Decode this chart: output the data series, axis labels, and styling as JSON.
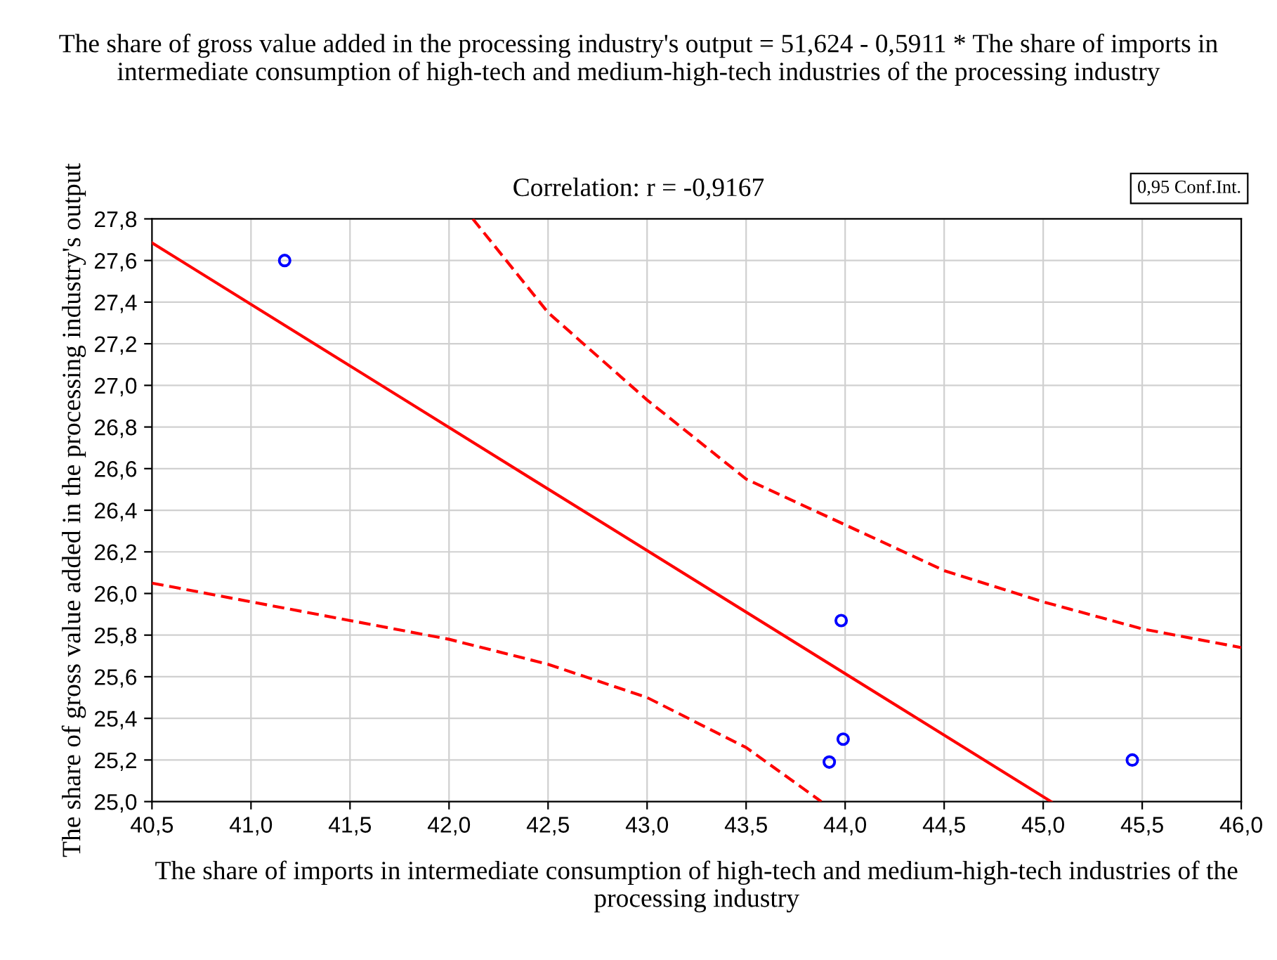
{
  "chart_data": {
    "type": "scatter",
    "title": "The share of gross value added in the processing industry's output = 51,624 - 0,5911 * The share of imports in intermediate consumption of high-tech and medium-high-tech industries of the processing industry",
    "subtitle": "Correlation: r = -0,9167",
    "xlabel": "The share of imports in intermediate consumption of high-tech and medium-high-tech industries of the processing industry",
    "ylabel": "The share of gross value added in the processing industry's output",
    "annotations": [
      "0,95 Conf.Int."
    ],
    "series": [
      {
        "color": "#0000ff",
        "marker": "circle",
        "x": [
          41.17,
          43.98,
          43.99,
          43.92,
          45.45
        ],
        "values": [
          27.6,
          25.87,
          25.3,
          25.19,
          25.2
        ]
      },
      {
        "type": "line",
        "color": "#ff0000",
        "line_style": "solid",
        "x": [
          40.5,
          45.04
        ],
        "values": [
          27.685,
          25.0
        ]
      },
      {
        "type": "line",
        "color": "#ff0000",
        "line_style": "dashed",
        "x": [
          42.12,
          42.5,
          43.0,
          43.5,
          44.0,
          44.5,
          45.0,
          45.5,
          46.0
        ],
        "values": [
          27.8,
          27.35,
          26.93,
          26.55,
          26.33,
          26.11,
          25.96,
          25.83,
          25.74
        ]
      },
      {
        "type": "line",
        "color": "#ff0000",
        "line_style": "dashed",
        "x": [
          40.5,
          41.0,
          41.5,
          42.0,
          42.5,
          43.0,
          43.5,
          43.88
        ],
        "values": [
          26.05,
          25.96,
          25.87,
          25.78,
          25.66,
          25.5,
          25.26,
          25.0
        ]
      }
    ],
    "xlim": [
      40.5,
      46.0
    ],
    "xticks": [
      {
        "value": 40.5,
        "label": "40,5"
      },
      {
        "value": 41.0,
        "label": "41,0"
      },
      {
        "value": 41.5,
        "label": "41,5"
      },
      {
        "value": 42.0,
        "label": "42,0"
      },
      {
        "value": 42.5,
        "label": "42,5"
      },
      {
        "value": 43.0,
        "label": "43,0"
      },
      {
        "value": 43.5,
        "label": "43,5"
      },
      {
        "value": 44.0,
        "label": "44,0"
      },
      {
        "value": 44.5,
        "label": "44,5"
      },
      {
        "value": 45.0,
        "label": "45,0"
      },
      {
        "value": 45.5,
        "label": "45,5"
      },
      {
        "value": 46.0,
        "label": "46,0"
      }
    ],
    "ylim": [
      25.0,
      27.8
    ],
    "yticks": [
      {
        "value": 25.0,
        "label": "25,0"
      },
      {
        "value": 25.2,
        "label": "25,2"
      },
      {
        "value": 25.4,
        "label": "25,4"
      },
      {
        "value": 25.6,
        "label": "25,6"
      },
      {
        "value": 25.8,
        "label": "25,8"
      },
      {
        "value": 26.0,
        "label": "26,0"
      },
      {
        "value": 26.2,
        "label": "26,2"
      },
      {
        "value": 26.4,
        "label": "26,4"
      },
      {
        "value": 26.6,
        "label": "26,6"
      },
      {
        "value": 26.8,
        "label": "26,8"
      },
      {
        "value": 27.0,
        "label": "27,0"
      },
      {
        "value": 27.2,
        "label": "27,2"
      },
      {
        "value": 27.4,
        "label": "27,4"
      },
      {
        "value": 27.6,
        "label": "27,6"
      },
      {
        "value": 27.8,
        "label": "27,8"
      }
    ],
    "grid": true
  }
}
